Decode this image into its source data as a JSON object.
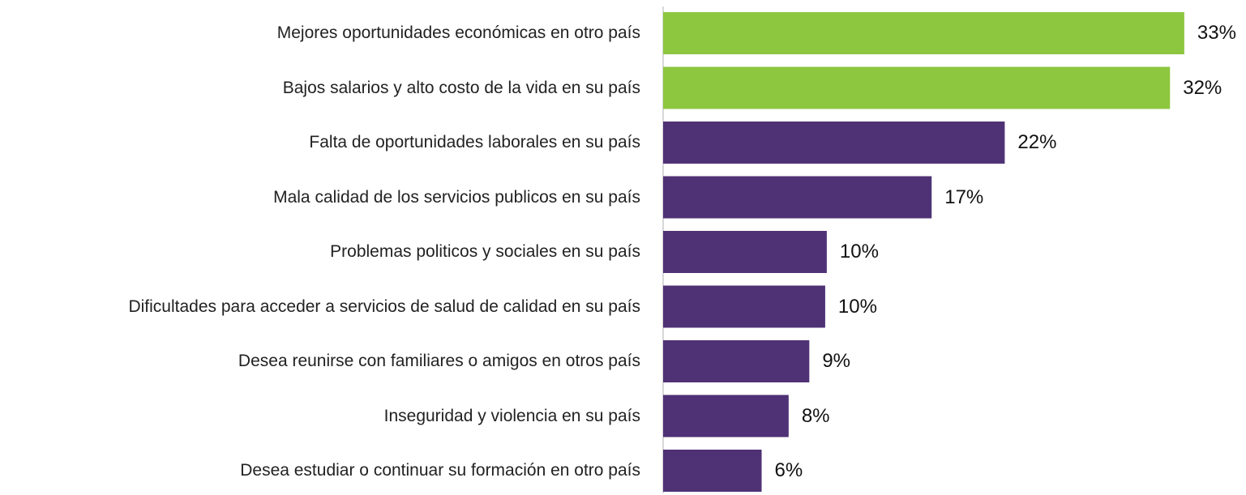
{
  "chart_data": {
    "type": "barh",
    "categories": [
      "Mejores oportunidades económicas en otro país",
      "Bajos salarios y alto costo de la vida en su país",
      "Falta de oportunidades laborales en su país",
      "Mala calidad de los servicios publicos en su país",
      "Problemas politicos y sociales en su país",
      "Dificultades para acceder a servicios de salud de calidad en su país",
      "Desea reunirse con familiares o amigos en otros país",
      "Inseguridad y violencia en su país",
      "Desea estudiar o continuar su formación en otro país"
    ],
    "values": [
      32.8,
      31.9,
      21.5,
      16.9,
      10.3,
      10.2,
      9.2,
      7.9,
      6.2
    ],
    "value_labels": [
      "33%",
      "32%",
      "22%",
      "17%",
      "10%",
      "10%",
      "9%",
      "8%",
      "6%"
    ],
    "colors": [
      "#8dc63f",
      "#8dc63f",
      "#4f3275",
      "#4f3275",
      "#4f3275",
      "#4f3275",
      "#4f3275",
      "#4f3275",
      "#4f3275"
    ],
    "xlim": [
      0,
      35
    ]
  }
}
